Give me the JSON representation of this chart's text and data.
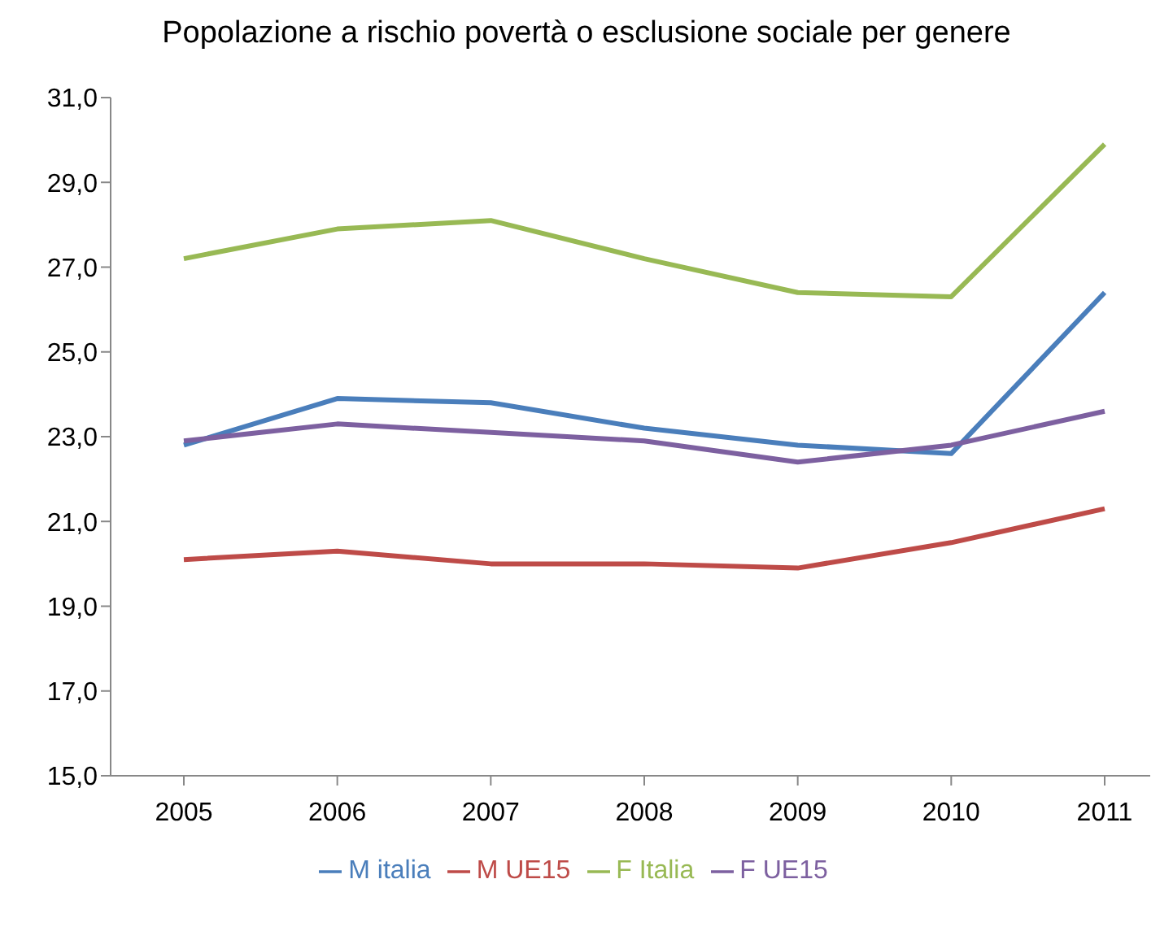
{
  "chart_data": {
    "type": "line",
    "title": "Popolazione a rischio povertà o esclusione sociale per genere",
    "categories": [
      "2005",
      "2006",
      "2007",
      "2008",
      "2009",
      "2010",
      "2011"
    ],
    "series": [
      {
        "name": "M italia",
        "color": "#4a7ebb",
        "values": [
          22.8,
          23.9,
          23.8,
          23.2,
          22.8,
          22.6,
          26.4
        ]
      },
      {
        "name": "M UE15",
        "color": "#be4b48",
        "values": [
          20.1,
          20.3,
          20.0,
          20.0,
          19.9,
          20.5,
          21.3
        ]
      },
      {
        "name": "F Italia",
        "color": "#98b954",
        "values": [
          27.2,
          27.9,
          28.1,
          27.2,
          26.4,
          26.3,
          29.9
        ]
      },
      {
        "name": "F UE15",
        "color": "#7d60a0",
        "values": [
          22.9,
          23.3,
          23.1,
          22.9,
          22.4,
          22.8,
          23.6
        ]
      }
    ],
    "ylim": [
      15,
      31
    ],
    "yticks": [
      {
        "value": 15,
        "label": "15,0"
      },
      {
        "value": 17,
        "label": "17,0"
      },
      {
        "value": 19,
        "label": "19,0"
      },
      {
        "value": 21,
        "label": "21,0"
      },
      {
        "value": 23,
        "label": "23,0"
      },
      {
        "value": 25,
        "label": "25,0"
      },
      {
        "value": 27,
        "label": "27,0"
      },
      {
        "value": 29,
        "label": "29,0"
      },
      {
        "value": 31,
        "label": "31,0"
      }
    ],
    "grid": false,
    "legend": "bottom",
    "marker": "none",
    "line_style": "solid"
  }
}
